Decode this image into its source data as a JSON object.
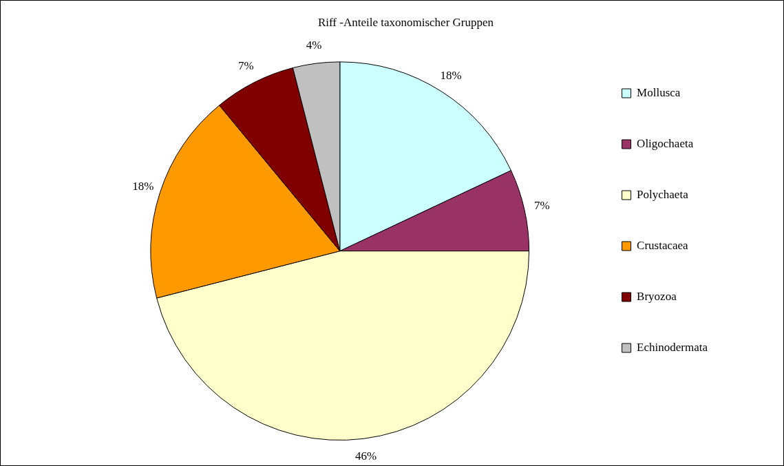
{
  "chart_data": {
    "type": "pie",
    "title": "Riff -Anteile taxonomischer Gruppen",
    "categories": [
      "Mollusca",
      "Oligochaeta",
      "Polychaeta",
      "Crustacaea",
      "Bryozoa",
      "Echinodermata"
    ],
    "values": [
      18,
      7,
      46,
      18,
      7,
      4
    ],
    "colors": [
      "#ccffff",
      "#993366",
      "#ffffcc",
      "#ff9900",
      "#800000",
      "#c0c0c0"
    ],
    "value_labels": [
      "18%",
      "7%",
      "46%",
      "18%",
      "7%",
      "4%"
    ],
    "legend": "right"
  }
}
